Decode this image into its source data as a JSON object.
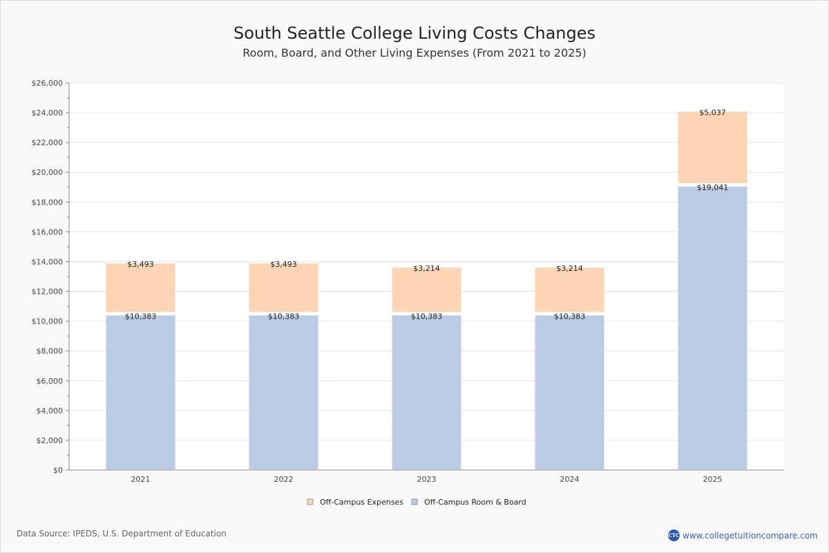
{
  "header": {
    "title": "South Seattle College Living Costs Changes",
    "subtitle": "Room, Board, and Other Living Expenses (From 2021 to 2025)"
  },
  "footer": {
    "source": "Data Source: IPEDS, U.S. Department of Education",
    "site": "www.collegetuitioncompare.com",
    "logo_text": "CTC"
  },
  "chart_data": {
    "type": "bar",
    "stacked": true,
    "title": "South Seattle College Living Costs Changes",
    "subtitle": "Room, Board, and Other Living Expenses (From 2021 to 2025)",
    "xlabel": "",
    "ylabel": "",
    "categories": [
      "2021",
      "2022",
      "2023",
      "2024",
      "2025"
    ],
    "ylim": [
      0,
      26000
    ],
    "yticks": [
      0,
      2000,
      4000,
      6000,
      8000,
      10000,
      12000,
      14000,
      16000,
      18000,
      20000,
      22000,
      24000,
      26000
    ],
    "ytick_labels": [
      "$0",
      "$2,000",
      "$4,000",
      "$6,000",
      "$8,000",
      "$10,000",
      "$12,000",
      "$14,000",
      "$16,000",
      "$18,000",
      "$20,000",
      "$22,000",
      "$24,000",
      "$26,000"
    ],
    "grid": true,
    "legend_position": "bottom",
    "series": [
      {
        "name": "Off-Campus Room & Board",
        "color": "#b9cce4",
        "values": [
          10383,
          10383,
          10383,
          10383,
          19041
        ],
        "labels": [
          "$10,383",
          "$10,383",
          "$10,383",
          "$10,383",
          "$19,041"
        ]
      },
      {
        "name": "Off-Campus Expenses",
        "color": "#fcd5b4",
        "values": [
          3493,
          3493,
          3214,
          3214,
          5037
        ],
        "labels": [
          "$3,493",
          "$3,493",
          "$3,214",
          "$3,214",
          "$5,037"
        ]
      }
    ],
    "legend_order": [
      "Off-Campus Expenses",
      "Off-Campus Room & Board"
    ]
  }
}
